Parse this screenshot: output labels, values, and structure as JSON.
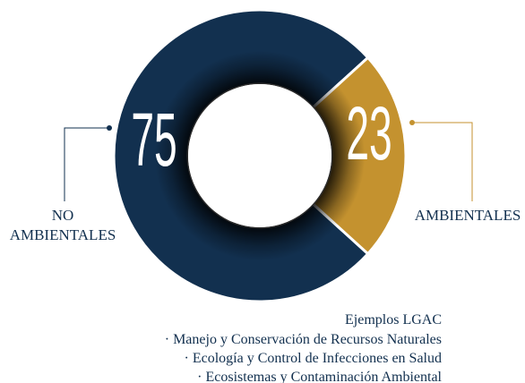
{
  "chart_data": {
    "type": "donut",
    "categories": [
      "NO AMBIENTALES",
      "AMBIENTALES"
    ],
    "values": [
      75,
      23
    ],
    "colors": [
      "#12304f",
      "#c4922f"
    ],
    "annotations": [
      "Ejemplos LGAC",
      "· Manejo y Conservación de Recursos Naturales",
      "· Ecología y Control de Infecciones en Salud",
      "· Ecosistemas y Contaminación Ambiental"
    ]
  }
}
